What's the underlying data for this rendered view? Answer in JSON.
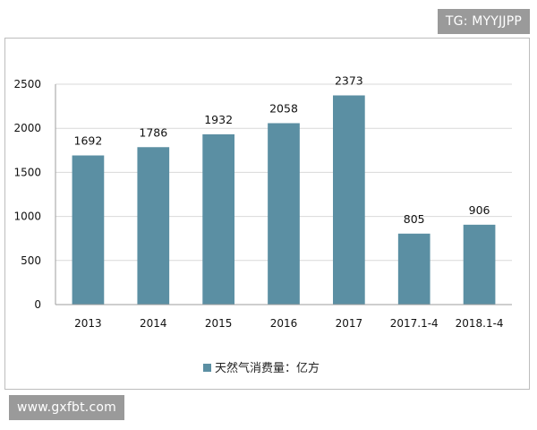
{
  "watermarks": {
    "top_right": "TG: MYYJJPP",
    "bottom_left": "www.gxfbt.com"
  },
  "colors": {
    "bar": "#5b8fa3",
    "axis": "#9e9e9e",
    "grid": "#d9d9d9"
  },
  "chart_data": {
    "type": "bar",
    "title": "",
    "xlabel": "",
    "ylabel": "",
    "categories": [
      "2013",
      "2014",
      "2015",
      "2016",
      "2017",
      "2017.1-4",
      "2018.1-4"
    ],
    "series": [
      {
        "name": "天然气消费量：亿方",
        "values": [
          1692,
          1786,
          1932,
          2058,
          2373,
          805,
          906
        ]
      }
    ],
    "ylim": [
      0,
      2500
    ],
    "yticks": [
      0,
      500,
      1000,
      1500,
      2000,
      2500
    ],
    "grid": true,
    "data_labels": true,
    "legend_position": "bottom"
  }
}
